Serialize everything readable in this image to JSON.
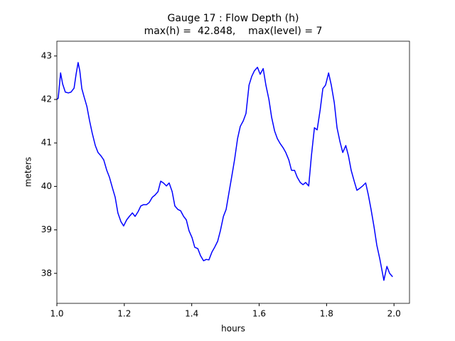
{
  "chart_data": {
    "type": "line",
    "title": "Gauge 17 : Flow Depth (h)",
    "subtitle": "max(h) =  42.848,    max(level) = 7",
    "xlabel": "hours",
    "ylabel": "meters",
    "xlim": [
      1.0,
      2.046
    ],
    "ylim": [
      37.31,
      43.34
    ],
    "xticks": [
      {
        "value": 1,
        "label": "1.0"
      },
      1.2,
      1.4,
      1.6,
      1.8,
      {
        "value": 2,
        "label": "2.0"
      }
    ],
    "yticks": [
      38,
      39,
      40,
      41,
      42,
      43
    ],
    "grid": false,
    "series": [
      {
        "color": "#0000ff",
        "x": [
          1.0,
          1.004,
          1.011,
          1.017,
          1.025,
          1.034,
          1.042,
          1.051,
          1.057,
          1.063,
          1.068,
          1.074,
          1.08,
          1.089,
          1.097,
          1.105,
          1.114,
          1.122,
          1.131,
          1.139,
          1.148,
          1.156,
          1.165,
          1.173,
          1.181,
          1.19,
          1.198,
          1.207,
          1.215,
          1.224,
          1.232,
          1.241,
          1.249,
          1.257,
          1.266,
          1.274,
          1.283,
          1.291,
          1.3,
          1.308,
          1.316,
          1.325,
          1.333,
          1.342,
          1.35,
          1.359,
          1.367,
          1.376,
          1.384,
          1.392,
          1.401,
          1.409,
          1.418,
          1.426,
          1.435,
          1.443,
          1.451,
          1.46,
          1.468,
          1.477,
          1.485,
          1.494,
          1.502,
          1.511,
          1.519,
          1.527,
          1.536,
          1.544,
          1.553,
          1.561,
          1.57,
          1.578,
          1.586,
          1.595,
          1.603,
          1.612,
          1.62,
          1.629,
          1.637,
          1.646,
          1.654,
          1.662,
          1.671,
          1.679,
          1.688,
          1.696,
          1.705,
          1.713,
          1.722,
          1.73,
          1.738,
          1.747,
          1.755,
          1.764,
          1.772,
          1.781,
          1.789,
          1.797,
          1.806,
          1.814,
          1.823,
          1.831,
          1.84,
          1.848,
          1.857,
          1.865,
          1.873,
          1.882,
          1.89,
          1.899,
          1.907,
          1.916,
          1.924,
          1.932,
          1.941,
          1.949,
          1.958,
          1.966,
          1.97,
          1.979,
          1.987,
          1.996
        ],
        "values": [
          42.0,
          42.03,
          42.61,
          42.36,
          42.17,
          42.15,
          42.17,
          42.26,
          42.58,
          42.85,
          42.66,
          42.25,
          42.08,
          41.84,
          41.51,
          41.22,
          40.94,
          40.78,
          40.7,
          40.61,
          40.37,
          40.21,
          39.96,
          39.75,
          39.39,
          39.19,
          39.09,
          39.23,
          39.31,
          39.39,
          39.31,
          39.42,
          39.55,
          39.58,
          39.58,
          39.63,
          39.75,
          39.8,
          39.88,
          40.12,
          40.08,
          40.01,
          40.08,
          39.88,
          39.55,
          39.47,
          39.44,
          39.31,
          39.23,
          38.98,
          38.82,
          38.6,
          38.57,
          38.41,
          38.29,
          38.32,
          38.31,
          38.49,
          38.6,
          38.74,
          38.98,
          39.31,
          39.47,
          39.88,
          40.24,
          40.61,
          41.1,
          41.38,
          41.51,
          41.68,
          42.33,
          42.53,
          42.66,
          42.74,
          42.58,
          42.71,
          42.33,
          42.0,
          41.59,
          41.27,
          41.1,
          40.99,
          40.89,
          40.78,
          40.61,
          40.37,
          40.37,
          40.21,
          40.09,
          40.04,
          40.09,
          40.01,
          40.7,
          41.35,
          41.3,
          41.76,
          42.25,
          42.33,
          42.61,
          42.33,
          41.92,
          41.35,
          41.02,
          40.78,
          40.94,
          40.7,
          40.37,
          40.12,
          39.91,
          39.96,
          40.01,
          40.08,
          39.8,
          39.47,
          39.06,
          38.65,
          38.33,
          38.0,
          37.84,
          38.16,
          38.0,
          37.92
        ]
      }
    ]
  }
}
